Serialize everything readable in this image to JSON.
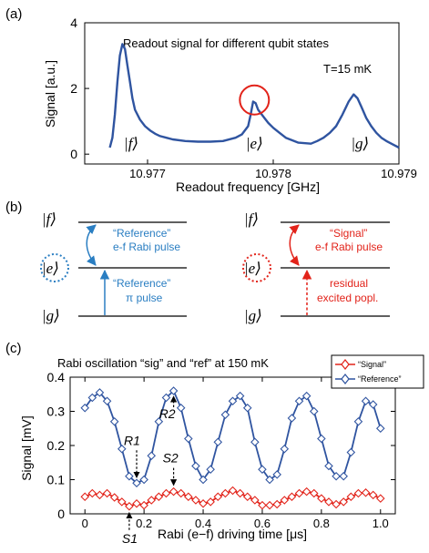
{
  "panels": {
    "a": "(a)",
    "b": "(b)",
    "c": "(c)"
  },
  "colors": {
    "blue": "#2f54a0",
    "red": "#e2231a",
    "ref_blue": "#2a7ec2",
    "axis": "#000000"
  },
  "chart_data": [
    {
      "type": "line",
      "title": "Readout signal for different qubit states",
      "annotation": "T=15 mK",
      "xlabel": "Readout frequency [GHz]",
      "ylabel": "Signal [a.u.]",
      "xlim": [
        10.9765,
        10.979
      ],
      "ylim": [
        -0.3,
        4
      ],
      "x_ticks": [
        "10.977",
        "10.978",
        "10.979"
      ],
      "x_tick_values": [
        10.977,
        10.978,
        10.979
      ],
      "y_ticks": [
        "0",
        "2",
        "4"
      ],
      "y_tick_values": [
        0,
        2,
        4
      ],
      "series": [
        {
          "color": "#2f54a0",
          "x": [
            10.9767,
            10.97672,
            10.97674,
            10.97676,
            10.97678,
            10.9768,
            10.97682,
            10.97684,
            10.97686,
            10.97688,
            10.9769,
            10.97694,
            10.97698,
            10.97702,
            10.97706,
            10.9771,
            10.97715,
            10.9772,
            10.9773,
            10.9774,
            10.9775,
            10.9776,
            10.9777,
            10.97775,
            10.9778,
            10.97782,
            10.97784,
            10.97786,
            10.97788,
            10.9779,
            10.97793,
            10.97796,
            10.978,
            10.97805,
            10.9781,
            10.9782,
            10.9783,
            10.97835,
            10.9784,
            10.97845,
            10.9785,
            10.97855,
            10.9786,
            10.97864,
            10.97867,
            10.9787,
            10.97874,
            10.97878,
            10.97882,
            10.97886,
            10.9789,
            10.97895,
            10.979
          ],
          "y": [
            0.2,
            0.5,
            1.2,
            2.2,
            3.0,
            3.35,
            3.2,
            2.7,
            2.2,
            1.7,
            1.35,
            1.05,
            0.85,
            0.72,
            0.62,
            0.55,
            0.5,
            0.45,
            0.4,
            0.38,
            0.38,
            0.4,
            0.5,
            0.6,
            0.85,
            1.2,
            1.6,
            1.55,
            1.35,
            1.25,
            1.1,
            0.95,
            0.8,
            0.65,
            0.5,
            0.35,
            0.32,
            0.4,
            0.5,
            0.65,
            0.85,
            1.2,
            1.6,
            1.82,
            1.7,
            1.45,
            1.1,
            0.85,
            0.65,
            0.5,
            0.4,
            0.3,
            0.2
          ]
        }
      ],
      "state_labels": [
        "|f⟩",
        "|e⟩",
        "|g⟩"
      ],
      "state_label_x": [
        10.97687,
        10.97785,
        10.97869
      ],
      "highlight": {
        "x": 10.97785,
        "y": 1.65
      }
    },
    {
      "type": "line",
      "title": "Rabi oscillation “sig” and “ref” at 150 mK",
      "xlabel": "Rabi (e−f) driving time [μs]",
      "ylabel": "Signal [mV]",
      "xlim": [
        -0.05,
        1.05
      ],
      "ylim": [
        0,
        0.4
      ],
      "x_ticks": [
        "0",
        "0.2",
        "0.4",
        "0.6",
        "0.8",
        "1.0"
      ],
      "x_tick_values": [
        0,
        0.2,
        0.4,
        0.6,
        0.8,
        1.0
      ],
      "y_ticks": [
        "0",
        "0.1",
        "0.2",
        "0.3",
        "0.4"
      ],
      "y_tick_values": [
        0,
        0.1,
        0.2,
        0.3,
        0.4
      ],
      "legend_position": "top-right",
      "x": [
        0.0,
        0.025,
        0.05,
        0.075,
        0.1,
        0.125,
        0.15,
        0.175,
        0.2,
        0.225,
        0.25,
        0.275,
        0.3,
        0.325,
        0.35,
        0.375,
        0.4,
        0.425,
        0.45,
        0.475,
        0.5,
        0.525,
        0.55,
        0.575,
        0.6,
        0.625,
        0.65,
        0.675,
        0.7,
        0.725,
        0.75,
        0.775,
        0.8,
        0.825,
        0.85,
        0.875,
        0.9,
        0.925,
        0.95,
        0.975,
        1.0
      ],
      "series": [
        {
          "name": "“Signal”",
          "color": "#e2231a",
          "marker": "diamond",
          "values": [
            0.05,
            0.06,
            0.055,
            0.06,
            0.048,
            0.035,
            0.022,
            0.03,
            0.025,
            0.04,
            0.05,
            0.06,
            0.065,
            0.06,
            0.05,
            0.04,
            0.03,
            0.035,
            0.05,
            0.06,
            0.068,
            0.06,
            0.05,
            0.04,
            0.025,
            0.025,
            0.028,
            0.04,
            0.05,
            0.06,
            0.065,
            0.06,
            0.045,
            0.035,
            0.028,
            0.035,
            0.05,
            0.06,
            0.062,
            0.055,
            0.045
          ]
        },
        {
          "name": "“Reference”",
          "color": "#2f54a0",
          "marker": "diamond",
          "values": [
            0.31,
            0.34,
            0.355,
            0.33,
            0.27,
            0.19,
            0.11,
            0.09,
            0.1,
            0.17,
            0.27,
            0.34,
            0.36,
            0.31,
            0.22,
            0.14,
            0.1,
            0.13,
            0.21,
            0.29,
            0.33,
            0.345,
            0.31,
            0.21,
            0.13,
            0.1,
            0.115,
            0.19,
            0.28,
            0.33,
            0.345,
            0.3,
            0.22,
            0.14,
            0.11,
            0.11,
            0.18,
            0.27,
            0.33,
            0.32,
            0.25
          ]
        }
      ],
      "markers": [
        {
          "label": "R1",
          "x": 0.175,
          "y": 0.09
        },
        {
          "label": "R2",
          "x": 0.3,
          "y": 0.36
        },
        {
          "label": "S2",
          "x": 0.3,
          "y": 0.065
        },
        {
          "label": "S1",
          "x": 0.15,
          "y": 0.022
        }
      ]
    }
  ],
  "diagram": {
    "left": {
      "levels": [
        "|f⟩",
        "|e⟩",
        "|g⟩"
      ],
      "upper_label_line1": "“Reference”",
      "upper_label_line2": "e-f Rabi pulse",
      "lower_label_line1": "“Reference”",
      "lower_label_line2": "π pulse"
    },
    "right": {
      "levels": [
        "|f⟩",
        "|e⟩",
        "|g⟩"
      ],
      "upper_label_line1": "“Signal”",
      "upper_label_line2": "e-f Rabi pulse",
      "lower_label_line1": "residual",
      "lower_label_line2": "excited popl."
    }
  }
}
